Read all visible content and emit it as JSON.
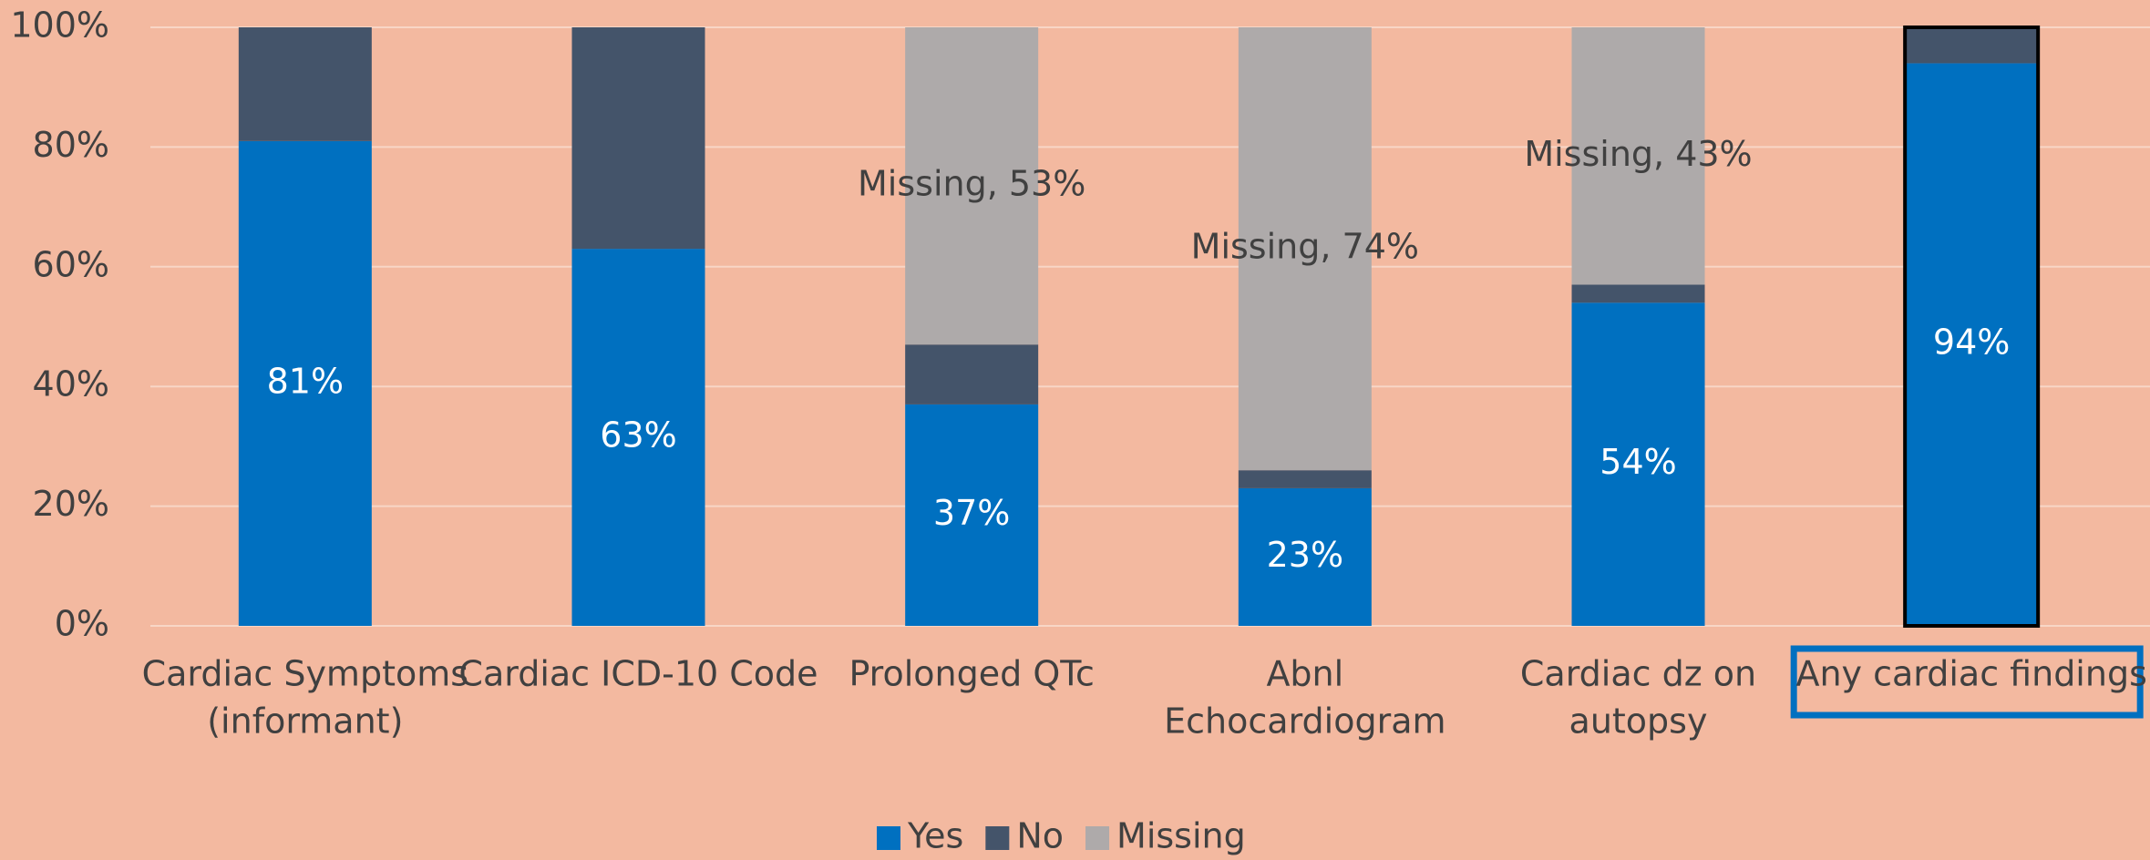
{
  "chart_data": {
    "type": "stacked_bar",
    "categories": [
      [
        "Cardiac Symptoms",
        "(informant)"
      ],
      [
        "Cardiac ICD-10 Code"
      ],
      [
        "Prolonged QTc"
      ],
      [
        "Abnl",
        "Echocardiogram"
      ],
      [
        "Cardiac dz on",
        "autopsy"
      ],
      [
        "Any cardiac findings"
      ]
    ],
    "highlighted": [
      false,
      false,
      false,
      false,
      false,
      true
    ],
    "series": [
      {
        "name": "Yes",
        "color": "#0070c0",
        "label_color": "#ffffff",
        "values": [
          81,
          63,
          37,
          23,
          54,
          94
        ],
        "value_labels": [
          "81%",
          "63%",
          "37%",
          "23%",
          "54%",
          "94%"
        ]
      },
      {
        "name": "No",
        "color": "#44546a",
        "values": [
          19,
          37,
          10,
          3,
          3,
          6
        ]
      },
      {
        "name": "Missing",
        "color": "#aeaaaa",
        "label_color": "#404040",
        "values": [
          0,
          0,
          53,
          74,
          43,
          0
        ],
        "value_labels": [
          null,
          null,
          "Missing, 53%",
          "Missing, 74%",
          "Missing, 43%",
          null
        ]
      }
    ],
    "ylim": [
      0,
      100
    ],
    "yticks": [
      {
        "value": 0,
        "label": "0%"
      },
      {
        "value": 20,
        "label": "20%"
      },
      {
        "value": 40,
        "label": "40%"
      },
      {
        "value": 60,
        "label": "60%"
      },
      {
        "value": 80,
        "label": "80%"
      },
      {
        "value": 100,
        "label": "100%"
      }
    ],
    "grid": true,
    "legend": "bottom"
  }
}
